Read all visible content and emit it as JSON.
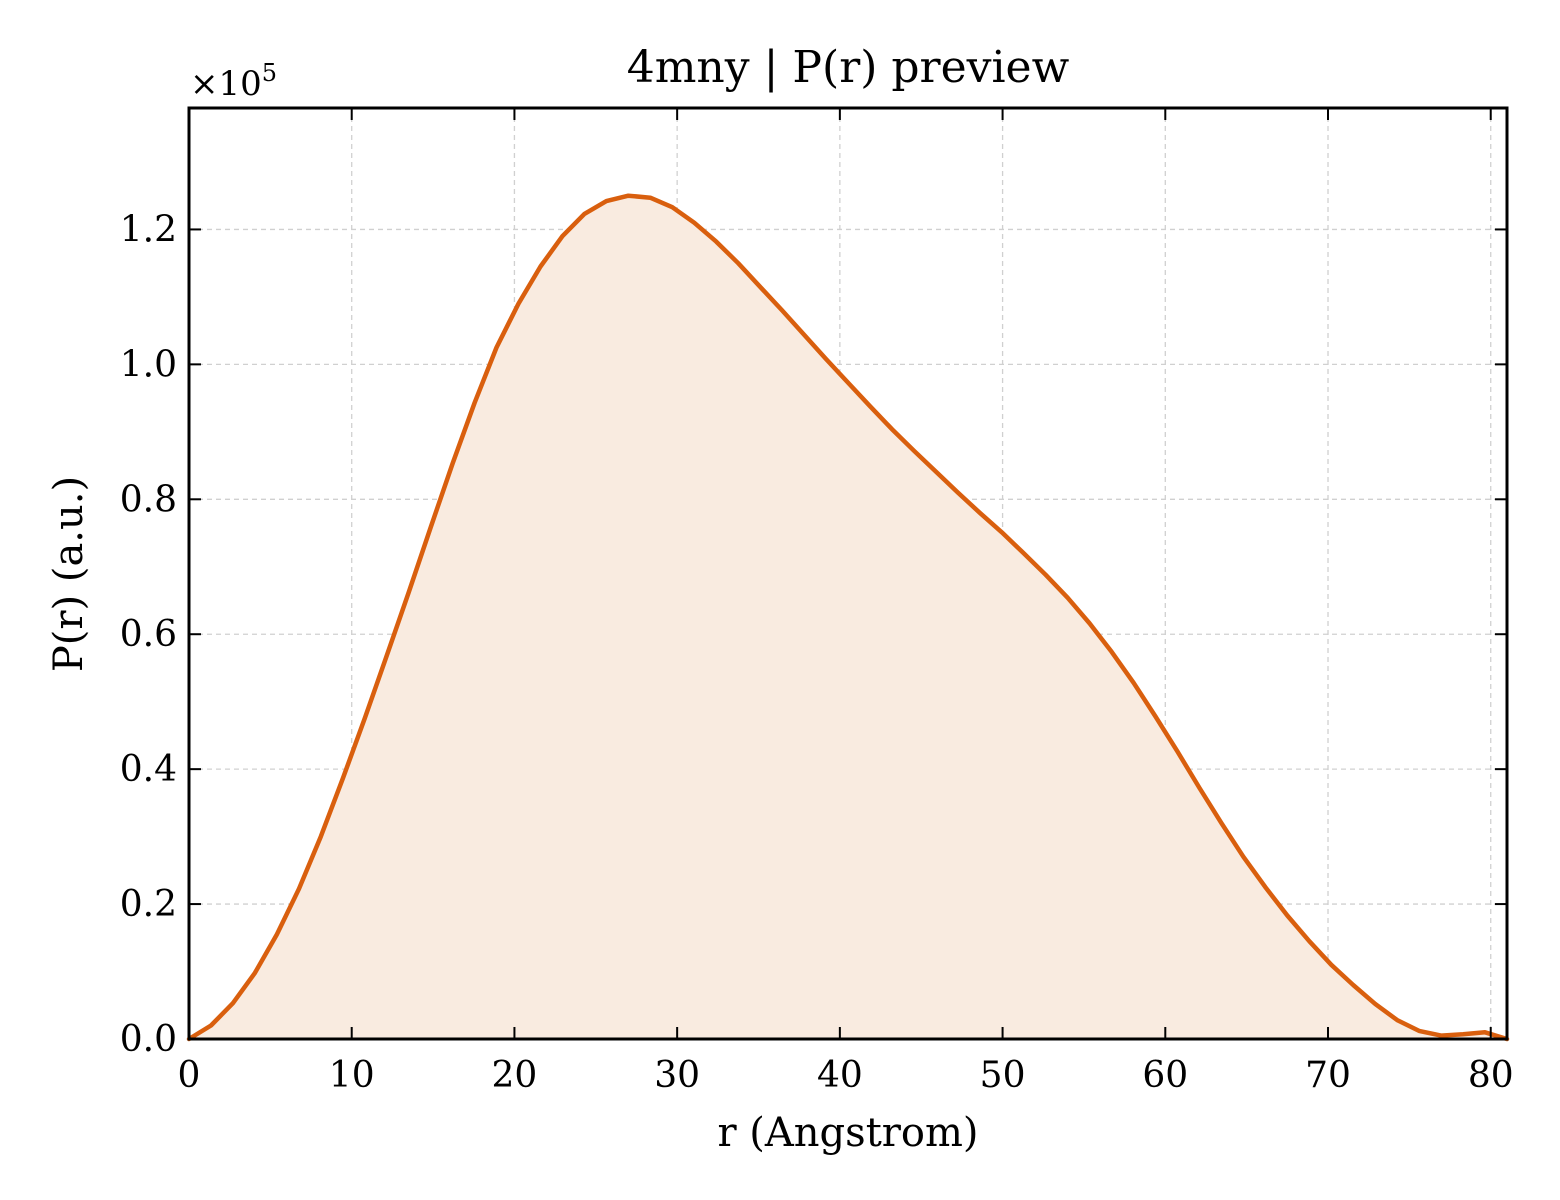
{
  "chart_data": {
    "type": "area",
    "title": "4mny | P(r) preview",
    "xlabel": "r (Angstrom)",
    "ylabel": "P(r) (a.u.)",
    "y_scale_multiplier": "×10",
    "y_scale_exponent": "5",
    "xlim": [
      0,
      81
    ],
    "ylim": [
      0,
      1.38
    ],
    "grid": true,
    "legend": "none",
    "line_color": "#d95f0e",
    "fill_color": "#f9ebe0",
    "x_ticks": [
      "0",
      "10",
      "20",
      "30",
      "40",
      "50",
      "60",
      "70",
      "80"
    ],
    "y_ticks": [
      "0.0",
      "0.2",
      "0.4",
      "0.6",
      "0.8",
      "1.0",
      "1.2"
    ],
    "x_tick_values": [
      0,
      10,
      20,
      30,
      40,
      50,
      60,
      70,
      80
    ],
    "y_tick_values": [
      0,
      0.2,
      0.4,
      0.6,
      0.8,
      1.0,
      1.2
    ],
    "series": [
      {
        "x": [
          0,
          1.35,
          2.7,
          4.05,
          5.4,
          6.75,
          8.1,
          9.45,
          10.8,
          12.15,
          13.5,
          14.85,
          16.2,
          17.55,
          18.9,
          20.25,
          21.6,
          22.95,
          24.3,
          25.65,
          27.0,
          28.35,
          29.7,
          31.05,
          32.4,
          33.75,
          35.1,
          36.45,
          37.8,
          39.15,
          40.5,
          41.85,
          43.2,
          44.55,
          45.9,
          47.25,
          48.6,
          49.95,
          51.3,
          52.65,
          54.0,
          55.35,
          56.7,
          58.05,
          59.4,
          60.75,
          62.1,
          63.45,
          64.8,
          66.15,
          67.5,
          68.85,
          70.2,
          71.55,
          72.9,
          74.25,
          75.6,
          76.95,
          78.3,
          79.65,
          81.0
        ],
        "values": [
          0.0,
          0.02,
          0.053,
          0.098,
          0.155,
          0.222,
          0.3,
          0.386,
          0.475,
          0.568,
          0.662,
          0.758,
          0.853,
          0.943,
          1.025,
          1.09,
          1.145,
          1.19,
          1.223,
          1.242,
          1.25,
          1.247,
          1.233,
          1.21,
          1.182,
          1.15,
          1.115,
          1.08,
          1.044,
          1.008,
          0.973,
          0.938,
          0.904,
          0.872,
          0.841,
          0.81,
          0.78,
          0.751,
          0.72,
          0.688,
          0.654,
          0.616,
          0.574,
          0.528,
          0.478,
          0.426,
          0.372,
          0.32,
          0.27,
          0.225,
          0.183,
          0.145,
          0.11,
          0.08,
          0.052,
          0.028,
          0.012,
          0.005,
          0.007,
          0.01,
          0.0
        ]
      }
    ]
  }
}
